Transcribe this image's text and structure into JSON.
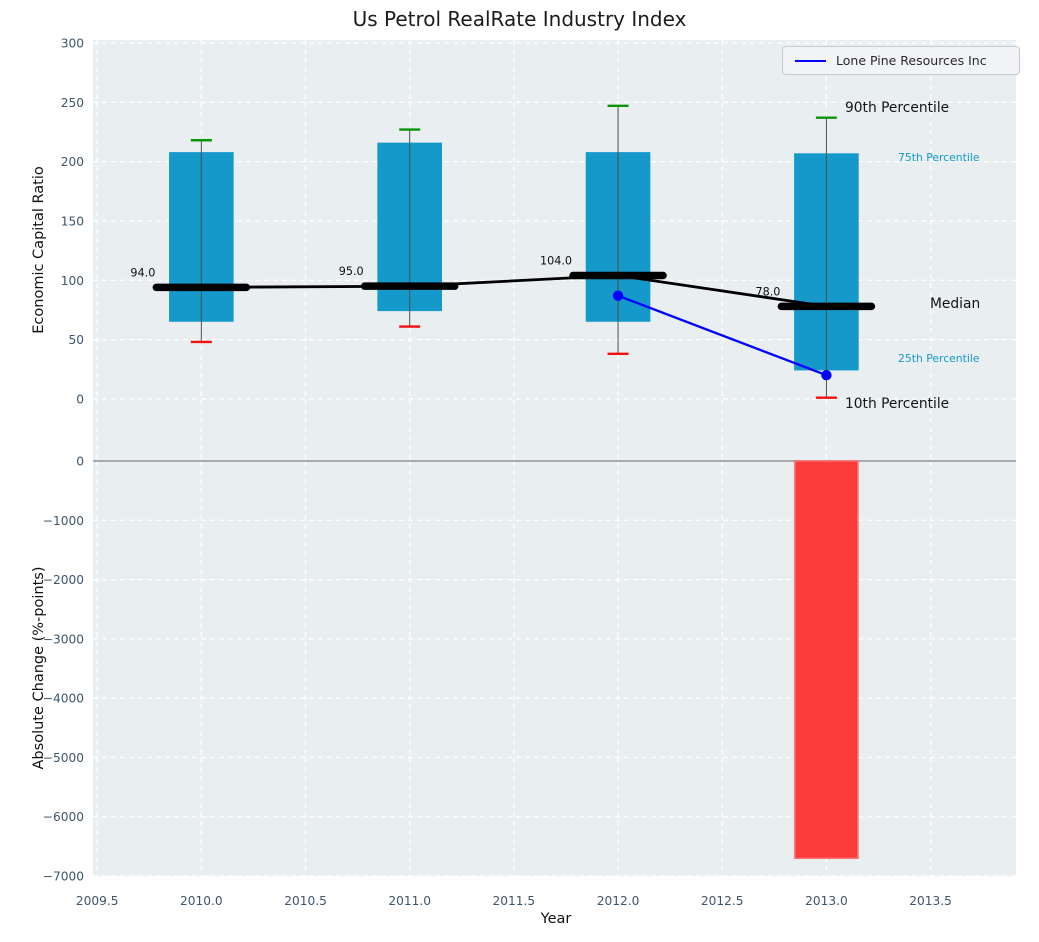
{
  "title": "Us Petrol RealRate Industry Index",
  "legend": {
    "label": "Lone Pine Resources Inc"
  },
  "annotations": {
    "p90": "90th Percentile",
    "p75": "75th Percentile",
    "median": "Median",
    "p25": "25th Percentile",
    "p10": "10th Percentile"
  },
  "colors": {
    "axes_bg": "#e9eef0",
    "grid": "#ffffff",
    "tick_label": "#3e566a",
    "box_fill": "#1599cb",
    "whisker_line": "#4d4d4d",
    "cap_top": "#079607",
    "cap_bottom": "#f20f0f",
    "median_line": "#000000",
    "series_line": "#0000ff",
    "bar_fill": "#fb3a3a",
    "bar_edge": "#fd6e6e",
    "zero_line": "#a8a8ae",
    "annotation_accent": "#1599cb"
  },
  "chart_data": [
    {
      "type": "box-percentile",
      "title": "Us Petrol RealRate Industry Index",
      "ylabel": "Economic Capital Ratio",
      "xlabel": "Year",
      "grid": true,
      "legend_position": "upper right",
      "ylim": [
        0,
        300
      ],
      "ylim_render": [
        -51.5,
        302.5
      ],
      "xlim": [
        2009.48,
        2013.91
      ],
      "ytick_values": [
        0,
        50,
        100,
        150,
        200,
        250,
        300
      ],
      "ytick_labels": [
        "0",
        "50",
        "100",
        "150",
        "200",
        "250",
        "300"
      ],
      "xtick_values": [
        2009.5,
        2010.0,
        2010.5,
        2011.0,
        2011.5,
        2012.0,
        2012.5,
        2013.0,
        2013.5
      ],
      "xtick_labels": [
        "2009.5",
        "2010.0",
        "2010.5",
        "2011.0",
        "2011.5",
        "2012.0",
        "2012.5",
        "2013.0",
        "2013.5"
      ],
      "years": [
        2010,
        2011,
        2012,
        2013
      ],
      "p10": [
        48,
        61,
        38,
        1
      ],
      "p25": [
        65,
        74,
        65,
        24
      ],
      "median": [
        94,
        95,
        104,
        78
      ],
      "p75": [
        208,
        216,
        208,
        207
      ],
      "p90": [
        218,
        227,
        247,
        237
      ],
      "median_labels": [
        "94.0",
        "95.0",
        "104.0",
        "78.0"
      ],
      "series": [
        {
          "name": "Lone Pine Resources Inc",
          "x": [
            2012,
            2013
          ],
          "y": [
            87,
            20
          ]
        }
      ]
    },
    {
      "type": "bar",
      "ylabel": "Absolute Change (%-points)",
      "grid": true,
      "ylim": [
        -7000,
        0
      ],
      "ytick_values": [
        0,
        -1000,
        -2000,
        -3000,
        -4000,
        -5000,
        -6000,
        -7000
      ],
      "ytick_labels": [
        "0",
        "−1000",
        "−2000",
        "−3000",
        "−4000",
        "−5000",
        "−6000",
        "−7000"
      ],
      "bars": [
        {
          "x": 2013,
          "value": -6700
        }
      ]
    }
  ]
}
